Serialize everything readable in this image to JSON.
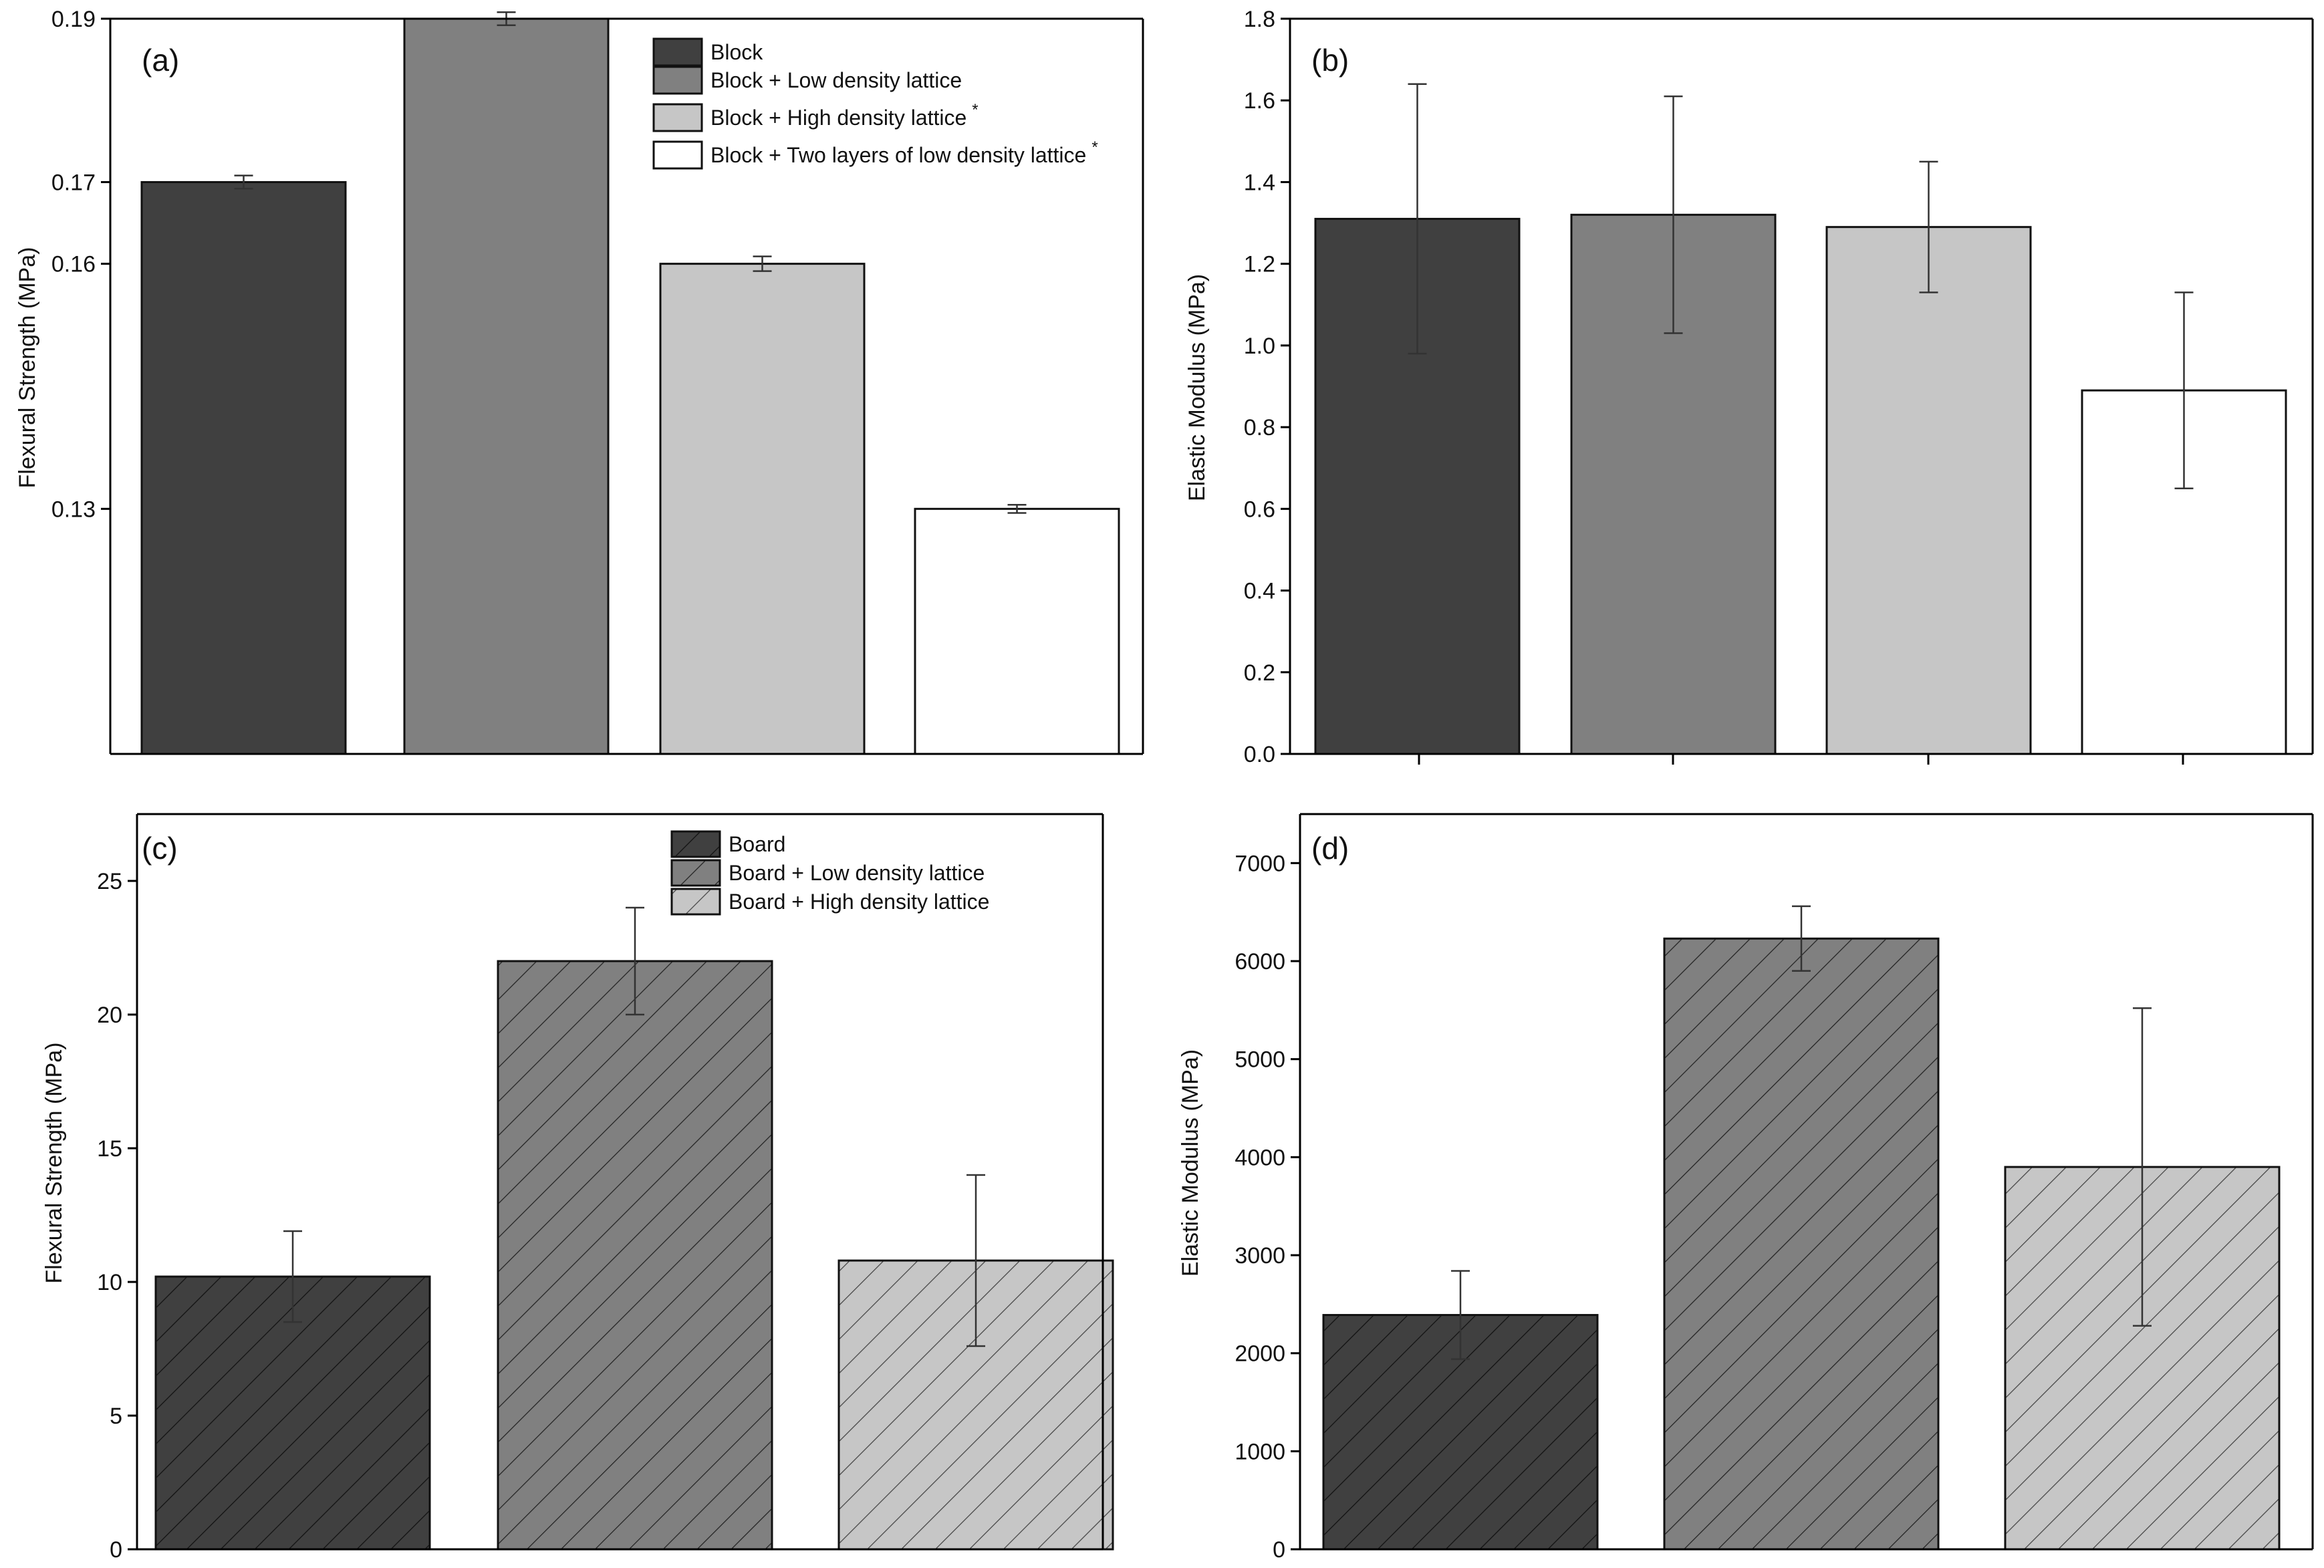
{
  "colors": {
    "dark": "#404040",
    "medium": "#808080",
    "light": "#c6c6c6",
    "white": "#ffffff",
    "edge": "#111111"
  },
  "chart_data": [
    {
      "panel": "(a)",
      "type": "bar",
      "title": "",
      "ylabel": "Flexural Strength (MPa)",
      "xlabel": "",
      "ylim": [
        0.1,
        0.19
      ],
      "yticks": [
        "0.13",
        "0.16",
        "0.17",
        "0.19"
      ],
      "ytick_values": [
        0.13,
        0.16,
        0.17,
        0.19
      ],
      "series": [
        {
          "name": "Block",
          "value": 0.17,
          "error": 0.0008,
          "fill": "dark",
          "star": ""
        },
        {
          "name": "Block + Low density lattice",
          "value": 0.19,
          "error": 0.0008,
          "fill": "medium",
          "star": ""
        },
        {
          "name": "Block + High density lattice",
          "value": 0.16,
          "error": 0.0009,
          "fill": "light",
          "star": "*"
        },
        {
          "name": "Block + Two layers of low density lattice",
          "value": 0.13,
          "error": 0.0005,
          "fill": "white",
          "star": "*"
        }
      ],
      "legend": "top-right",
      "hatched": false
    },
    {
      "panel": "(b)",
      "type": "bar",
      "title": "",
      "ylabel": "Elastic Modulus (MPa)",
      "xlabel": "",
      "ylim": [
        0.0,
        1.8
      ],
      "yticks": [
        "0.0",
        "0.2",
        "0.4",
        "0.6",
        "0.8",
        "1.0",
        "1.2",
        "1.4",
        "1.6",
        "1.8"
      ],
      "ytick_values": [
        0.0,
        0.2,
        0.4,
        0.6,
        0.8,
        1.0,
        1.2,
        1.4,
        1.6,
        1.8
      ],
      "series": [
        {
          "name": "Block",
          "value": 1.31,
          "error": 0.33,
          "fill": "dark"
        },
        {
          "name": "Block + Low density lattice",
          "value": 1.32,
          "error": 0.29,
          "fill": "medium"
        },
        {
          "name": "Block + High density lattice",
          "value": 1.29,
          "error": 0.16,
          "fill": "light"
        },
        {
          "name": "Block + Two layers of low density lattice",
          "value": 0.89,
          "error": 0.24,
          "fill": "white"
        }
      ],
      "legend": "none",
      "hatched": false
    },
    {
      "panel": "(c)",
      "type": "bar",
      "title": "",
      "ylabel": "Flexural Strength (MPa)",
      "xlabel": "",
      "ylim": [
        0,
        27.5
      ],
      "yticks": [
        "0",
        "5",
        "10",
        "15",
        "20",
        "25"
      ],
      "ytick_values": [
        0,
        5,
        10,
        15,
        20,
        25
      ],
      "series": [
        {
          "name": "Board",
          "value": 10.2,
          "error": 1.7,
          "fill": "dark"
        },
        {
          "name": "Board + Low density lattice",
          "value": 22.0,
          "error": 2.0,
          "fill": "medium"
        },
        {
          "name": "Board + High density lattice",
          "value": 10.8,
          "error": 3.2,
          "fill": "light"
        }
      ],
      "legend": "top-center",
      "hatched": true
    },
    {
      "panel": "(d)",
      "type": "bar",
      "title": "",
      "ylabel": "Elastic Modulus (MPa)",
      "xlabel": "",
      "ylim": [
        0,
        7500
      ],
      "yticks": [
        "0",
        "1000",
        "2000",
        "3000",
        "4000",
        "5000",
        "6000",
        "7000"
      ],
      "ytick_values": [
        0,
        1000,
        2000,
        3000,
        4000,
        5000,
        6000,
        7000
      ],
      "series": [
        {
          "name": "Board",
          "value": 2390,
          "error": 450,
          "fill": "dark"
        },
        {
          "name": "Board + Low density lattice",
          "value": 6230,
          "error": 330,
          "fill": "medium"
        },
        {
          "name": "Board + High density lattice",
          "value": 3900,
          "error": 1620,
          "fill": "light"
        }
      ],
      "legend": "none",
      "hatched": true
    }
  ]
}
